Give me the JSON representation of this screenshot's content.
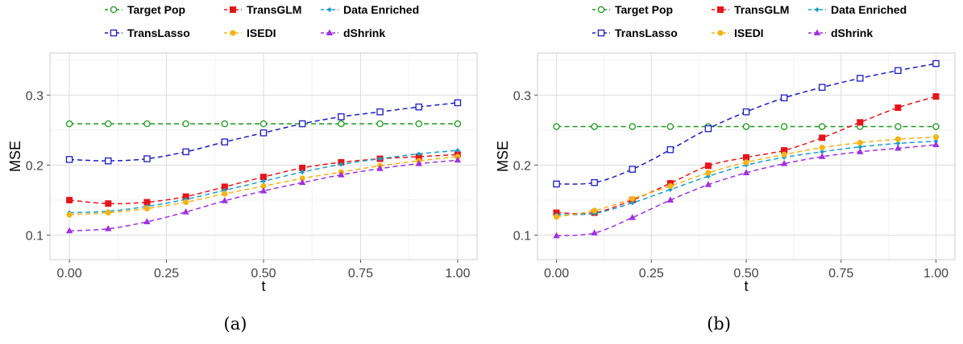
{
  "chart_data": [
    {
      "type": "line",
      "caption": "(a)",
      "xlabel": "t",
      "ylabel": "MSE",
      "xlim": [
        -0.05,
        1.05
      ],
      "ylim": [
        0.065,
        0.36
      ],
      "xticks": [
        0,
        0.25,
        0.5,
        0.75,
        1
      ],
      "xtick_labels": [
        "0.00",
        "0.25",
        "0.50",
        "0.75",
        "1.00"
      ],
      "yticks": [
        0.1,
        0.2,
        0.3
      ],
      "ytick_labels": [
        "0.1",
        "0.2",
        "0.3"
      ],
      "grid": true,
      "legend_position": "top",
      "x": [
        0,
        0.1,
        0.2,
        0.3,
        0.4,
        0.5,
        0.6,
        0.7,
        0.8,
        0.9,
        1.0
      ],
      "series": [
        {
          "name": "Target Pop",
          "color": "#1a9a1a",
          "marker": "open-circle",
          "values": [
            0.259,
            0.259,
            0.259,
            0.259,
            0.259,
            0.259,
            0.259,
            0.259,
            0.259,
            0.259,
            0.259
          ]
        },
        {
          "name": "TransGLM",
          "color": "#e8141b",
          "marker": "filled-square",
          "values": [
            0.15,
            0.145,
            0.147,
            0.155,
            0.169,
            0.183,
            0.196,
            0.204,
            0.209,
            0.212,
            0.215
          ]
        },
        {
          "name": "Data Enriched",
          "color": "#19a0c8",
          "marker": "filled-diamond",
          "values": [
            0.132,
            0.134,
            0.141,
            0.151,
            0.164,
            0.177,
            0.19,
            0.201,
            0.209,
            0.216,
            0.221
          ]
        },
        {
          "name": "TransLasso",
          "color": "#1b1bc4",
          "marker": "open-square",
          "values": [
            0.208,
            0.206,
            0.209,
            0.219,
            0.233,
            0.246,
            0.259,
            0.269,
            0.276,
            0.283,
            0.289
          ]
        },
        {
          "name": "ISEDI",
          "color": "#f5b416",
          "marker": "filled-circle",
          "values": [
            0.129,
            0.132,
            0.138,
            0.147,
            0.159,
            0.17,
            0.181,
            0.19,
            0.199,
            0.206,
            0.212
          ]
        },
        {
          "name": "dShrink",
          "color": "#a030e0",
          "marker": "filled-triangle",
          "values": [
            0.106,
            0.109,
            0.119,
            0.133,
            0.149,
            0.163,
            0.175,
            0.186,
            0.195,
            0.202,
            0.207
          ]
        }
      ]
    },
    {
      "type": "line",
      "caption": "(b)",
      "xlabel": "t",
      "ylabel": "MSE",
      "xlim": [
        -0.05,
        1.05
      ],
      "ylim": [
        0.065,
        0.36
      ],
      "xticks": [
        0,
        0.25,
        0.5,
        0.75,
        1
      ],
      "xtick_labels": [
        "0.00",
        "0.25",
        "0.50",
        "0.75",
        "1.00"
      ],
      "yticks": [
        0.1,
        0.2,
        0.3
      ],
      "ytick_labels": [
        "0.1",
        "0.2",
        "0.3"
      ],
      "grid": true,
      "legend_position": "top",
      "x": [
        0,
        0.1,
        0.2,
        0.3,
        0.4,
        0.5,
        0.6,
        0.7,
        0.8,
        0.9,
        1.0
      ],
      "series": [
        {
          "name": "Target Pop",
          "color": "#1a9a1a",
          "marker": "open-circle",
          "values": [
            0.255,
            0.255,
            0.255,
            0.255,
            0.255,
            0.255,
            0.255,
            0.255,
            0.255,
            0.255,
            0.255
          ]
        },
        {
          "name": "TransGLM",
          "color": "#e8141b",
          "marker": "filled-square",
          "values": [
            0.132,
            0.132,
            0.15,
            0.174,
            0.199,
            0.211,
            0.221,
            0.239,
            0.261,
            0.282,
            0.298
          ]
        },
        {
          "name": "Data Enriched",
          "color": "#19a0c8",
          "marker": "filled-diamond",
          "values": [
            0.129,
            0.131,
            0.146,
            0.165,
            0.184,
            0.2,
            0.211,
            0.219,
            0.226,
            0.231,
            0.234
          ]
        },
        {
          "name": "TransLasso",
          "color": "#1b1bc4",
          "marker": "open-square",
          "values": [
            0.173,
            0.175,
            0.194,
            0.222,
            0.252,
            0.276,
            0.296,
            0.311,
            0.324,
            0.335,
            0.345
          ]
        },
        {
          "name": "ISEDI",
          "color": "#f5b416",
          "marker": "filled-circle",
          "values": [
            0.126,
            0.135,
            0.152,
            0.17,
            0.189,
            0.204,
            0.215,
            0.225,
            0.232,
            0.237,
            0.24
          ]
        },
        {
          "name": "dShrink",
          "color": "#a030e0",
          "marker": "filled-triangle",
          "values": [
            0.099,
            0.103,
            0.125,
            0.15,
            0.172,
            0.189,
            0.202,
            0.212,
            0.219,
            0.224,
            0.229
          ]
        }
      ]
    }
  ]
}
